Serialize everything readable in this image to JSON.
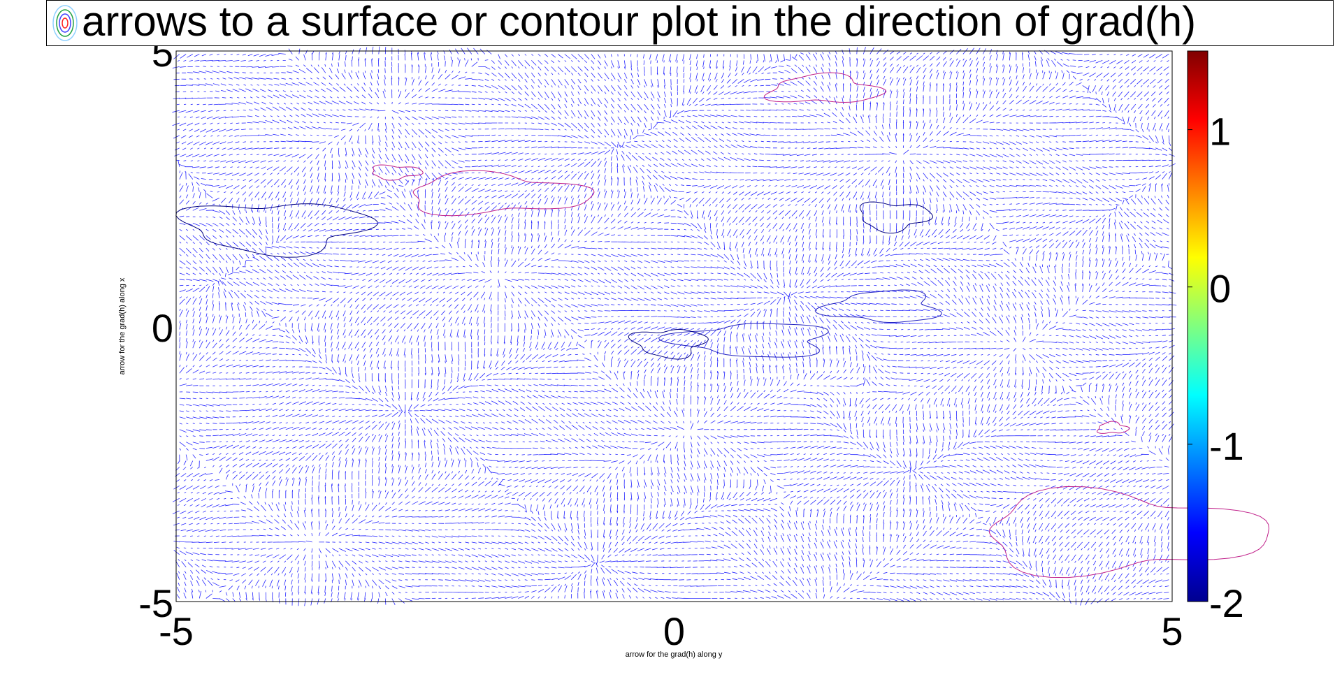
{
  "chart_data": {
    "type": "heatmap",
    "subtype": "quiver-over-contour",
    "title": "",
    "legend": [
      {
        "label": "arrows to a surface or contour plot in the direction of grad(h)",
        "marker": "contour-icon"
      }
    ],
    "xlabel": "arrow for the grad(h) along y",
    "ylabel": "arrow for the grad(h) along x",
    "xlim": [
      -5,
      5
    ],
    "ylim": [
      -5,
      5
    ],
    "x_ticks": [
      "-5",
      "0",
      "5"
    ],
    "y_ticks": [
      "-5",
      "0",
      "5"
    ],
    "colorbar": {
      "range": [
        -2,
        1.5
      ],
      "ticks": [
        "-2",
        "-1",
        "0",
        "1"
      ],
      "colormap": "jet"
    },
    "arrow_color": "#0000ff",
    "contour_colors": {
      "low": "#000080",
      "mid": "#2020c0",
      "high": "#c0208a"
    },
    "grid": false,
    "legend_position": "top"
  }
}
